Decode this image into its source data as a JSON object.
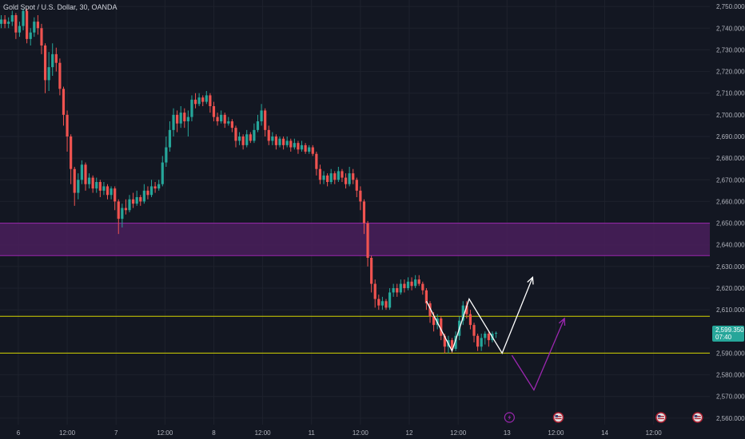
{
  "chart_data": {
    "type": "candlestick",
    "title": "Gold Spot / U.S. Dollar, 30, OANDA",
    "y_ticks": [
      "2,750.000",
      "2,740.000",
      "2,730.000",
      "2,720.000",
      "2,710.000",
      "2,700.000",
      "2,690.000",
      "2,680.000",
      "2,670.000",
      "2,660.000",
      "2,650.000",
      "2,640.000",
      "2,630.000",
      "2,620.000",
      "2,610.000",
      "2,590.000",
      "2,580.000",
      "2,570.000",
      "2,560.000"
    ],
    "y_tick_values": [
      2750,
      2740,
      2730,
      2720,
      2710,
      2700,
      2690,
      2680,
      2670,
      2660,
      2650,
      2640,
      2630,
      2620,
      2610,
      2590,
      2580,
      2570,
      2560
    ],
    "ylim": [
      2557,
      2753
    ],
    "x_ticks": [
      "6",
      "12:00",
      "7",
      "12:00",
      "8",
      "12:00",
      "11",
      "12:00",
      "12",
      "12:00",
      "13",
      "12:00",
      "14",
      "12:00"
    ],
    "x_tick_values": [
      1,
      3,
      5,
      7,
      9,
      11,
      13,
      15,
      17,
      19,
      21,
      23,
      25,
      27
    ],
    "xlim": [
      0.25,
      29.3
    ],
    "price_label": {
      "price": "2,599.350",
      "countdown": "07:40",
      "value": 2599.35
    },
    "zone": {
      "top": 2650,
      "bottom": 2635
    },
    "horizontal_lines": [
      2607,
      2590
    ],
    "candles": [
      {
        "x": 0.3,
        "o": 2742,
        "c": 2744,
        "h": 2746,
        "l": 2740
      },
      {
        "x": 0.45,
        "o": 2744,
        "c": 2742,
        "h": 2746,
        "l": 2740
      },
      {
        "x": 0.6,
        "o": 2742,
        "c": 2743,
        "h": 2745,
        "l": 2740
      },
      {
        "x": 0.75,
        "o": 2743,
        "c": 2746,
        "h": 2748,
        "l": 2741
      },
      {
        "x": 0.9,
        "o": 2746,
        "c": 2738,
        "h": 2747,
        "l": 2735
      },
      {
        "x": 1.05,
        "o": 2738,
        "c": 2741,
        "h": 2743,
        "l": 2736
      },
      {
        "x": 1.2,
        "o": 2741,
        "c": 2748,
        "h": 2749,
        "l": 2739
      },
      {
        "x": 1.35,
        "o": 2748,
        "c": 2735,
        "h": 2749,
        "l": 2733
      },
      {
        "x": 1.5,
        "o": 2735,
        "c": 2738,
        "h": 2740,
        "l": 2732
      },
      {
        "x": 1.65,
        "o": 2738,
        "c": 2743,
        "h": 2745,
        "l": 2736
      },
      {
        "x": 1.8,
        "o": 2743,
        "c": 2740,
        "h": 2746,
        "l": 2737
      },
      {
        "x": 1.95,
        "o": 2740,
        "c": 2732,
        "h": 2742,
        "l": 2728
      },
      {
        "x": 2.1,
        "o": 2732,
        "c": 2716,
        "h": 2733,
        "l": 2710
      },
      {
        "x": 2.25,
        "o": 2716,
        "c": 2722,
        "h": 2729,
        "l": 2711
      },
      {
        "x": 2.4,
        "o": 2722,
        "c": 2728,
        "h": 2733,
        "l": 2718
      },
      {
        "x": 2.55,
        "o": 2728,
        "c": 2724,
        "h": 2731,
        "l": 2720
      },
      {
        "x": 2.7,
        "o": 2724,
        "c": 2712,
        "h": 2726,
        "l": 2709
      },
      {
        "x": 2.85,
        "o": 2712,
        "c": 2700,
        "h": 2713,
        "l": 2695
      },
      {
        "x": 3.0,
        "o": 2700,
        "c": 2690,
        "h": 2702,
        "l": 2683
      },
      {
        "x": 3.15,
        "o": 2690,
        "c": 2675,
        "h": 2691,
        "l": 2668
      },
      {
        "x": 3.3,
        "o": 2675,
        "c": 2664,
        "h": 2676,
        "l": 2658
      },
      {
        "x": 3.45,
        "o": 2664,
        "c": 2670,
        "h": 2673,
        "l": 2661
      },
      {
        "x": 3.6,
        "o": 2670,
        "c": 2677,
        "h": 2679,
        "l": 2668
      },
      {
        "x": 3.75,
        "o": 2677,
        "c": 2668,
        "h": 2678,
        "l": 2665
      },
      {
        "x": 3.9,
        "o": 2668,
        "c": 2671,
        "h": 2673,
        "l": 2666
      },
      {
        "x": 4.05,
        "o": 2671,
        "c": 2666,
        "h": 2672,
        "l": 2664
      },
      {
        "x": 4.2,
        "o": 2666,
        "c": 2669,
        "h": 2671,
        "l": 2664
      },
      {
        "x": 4.35,
        "o": 2669,
        "c": 2665,
        "h": 2670,
        "l": 2662
      },
      {
        "x": 4.5,
        "o": 2665,
        "c": 2667,
        "h": 2669,
        "l": 2663
      },
      {
        "x": 4.65,
        "o": 2667,
        "c": 2663,
        "h": 2668,
        "l": 2661
      },
      {
        "x": 4.8,
        "o": 2663,
        "c": 2666,
        "h": 2667,
        "l": 2661
      },
      {
        "x": 4.95,
        "o": 2666,
        "c": 2660,
        "h": 2667,
        "l": 2656
      },
      {
        "x": 5.1,
        "o": 2660,
        "c": 2652,
        "h": 2661,
        "l": 2645
      },
      {
        "x": 5.25,
        "o": 2652,
        "c": 2657,
        "h": 2659,
        "l": 2648
      },
      {
        "x": 5.4,
        "o": 2657,
        "c": 2656,
        "h": 2661,
        "l": 2654
      },
      {
        "x": 5.55,
        "o": 2656,
        "c": 2661,
        "h": 2663,
        "l": 2655
      },
      {
        "x": 5.7,
        "o": 2661,
        "c": 2659,
        "h": 2664,
        "l": 2657
      },
      {
        "x": 5.85,
        "o": 2659,
        "c": 2662,
        "h": 2665,
        "l": 2658
      },
      {
        "x": 6.0,
        "o": 2662,
        "c": 2660,
        "h": 2663,
        "l": 2658
      },
      {
        "x": 6.15,
        "o": 2660,
        "c": 2665,
        "h": 2668,
        "l": 2659
      },
      {
        "x": 6.3,
        "o": 2665,
        "c": 2663,
        "h": 2667,
        "l": 2661
      },
      {
        "x": 6.45,
        "o": 2663,
        "c": 2667,
        "h": 2670,
        "l": 2662
      },
      {
        "x": 6.6,
        "o": 2667,
        "c": 2666,
        "h": 2669,
        "l": 2664
      },
      {
        "x": 6.75,
        "o": 2666,
        "c": 2668,
        "h": 2670,
        "l": 2665
      },
      {
        "x": 6.9,
        "o": 2668,
        "c": 2678,
        "h": 2681,
        "l": 2667
      },
      {
        "x": 7.05,
        "o": 2678,
        "c": 2685,
        "h": 2690,
        "l": 2676
      },
      {
        "x": 7.2,
        "o": 2685,
        "c": 2693,
        "h": 2697,
        "l": 2683
      },
      {
        "x": 7.35,
        "o": 2693,
        "c": 2700,
        "h": 2703,
        "l": 2690
      },
      {
        "x": 7.5,
        "o": 2700,
        "c": 2696,
        "h": 2702,
        "l": 2692
      },
      {
        "x": 7.65,
        "o": 2696,
        "c": 2701,
        "h": 2704,
        "l": 2694
      },
      {
        "x": 7.8,
        "o": 2701,
        "c": 2697,
        "h": 2703,
        "l": 2694
      },
      {
        "x": 7.95,
        "o": 2697,
        "c": 2699,
        "h": 2702,
        "l": 2690
      },
      {
        "x": 8.1,
        "o": 2699,
        "c": 2707,
        "h": 2709,
        "l": 2697
      },
      {
        "x": 8.25,
        "o": 2707,
        "c": 2705,
        "h": 2710,
        "l": 2703
      },
      {
        "x": 8.4,
        "o": 2705,
        "c": 2708,
        "h": 2710,
        "l": 2704
      },
      {
        "x": 8.55,
        "o": 2708,
        "c": 2706,
        "h": 2709,
        "l": 2704
      },
      {
        "x": 8.7,
        "o": 2706,
        "c": 2709,
        "h": 2711,
        "l": 2705
      },
      {
        "x": 8.85,
        "o": 2709,
        "c": 2704,
        "h": 2710,
        "l": 2701
      },
      {
        "x": 9.0,
        "o": 2704,
        "c": 2699,
        "h": 2706,
        "l": 2697
      },
      {
        "x": 9.15,
        "o": 2699,
        "c": 2697,
        "h": 2701,
        "l": 2695
      },
      {
        "x": 9.3,
        "o": 2697,
        "c": 2700,
        "h": 2702,
        "l": 2696
      },
      {
        "x": 9.45,
        "o": 2700,
        "c": 2696,
        "h": 2701,
        "l": 2694
      },
      {
        "x": 9.6,
        "o": 2696,
        "c": 2697,
        "h": 2699,
        "l": 2695
      },
      {
        "x": 9.75,
        "o": 2697,
        "c": 2694,
        "h": 2698,
        "l": 2692
      },
      {
        "x": 9.9,
        "o": 2694,
        "c": 2688,
        "h": 2695,
        "l": 2685
      },
      {
        "x": 10.05,
        "o": 2688,
        "c": 2690,
        "h": 2692,
        "l": 2686
      },
      {
        "x": 10.2,
        "o": 2690,
        "c": 2686,
        "h": 2691,
        "l": 2684
      },
      {
        "x": 10.35,
        "o": 2686,
        "c": 2691,
        "h": 2693,
        "l": 2685
      },
      {
        "x": 10.5,
        "o": 2691,
        "c": 2688,
        "h": 2692,
        "l": 2687
      },
      {
        "x": 10.65,
        "o": 2688,
        "c": 2693,
        "h": 2696,
        "l": 2687
      },
      {
        "x": 10.8,
        "o": 2693,
        "c": 2697,
        "h": 2700,
        "l": 2692
      },
      {
        "x": 10.95,
        "o": 2697,
        "c": 2702,
        "h": 2705,
        "l": 2695
      },
      {
        "x": 11.1,
        "o": 2702,
        "c": 2693,
        "h": 2703,
        "l": 2690
      },
      {
        "x": 11.25,
        "o": 2693,
        "c": 2688,
        "h": 2695,
        "l": 2686
      },
      {
        "x": 11.4,
        "o": 2688,
        "c": 2690,
        "h": 2692,
        "l": 2686
      },
      {
        "x": 11.55,
        "o": 2690,
        "c": 2686,
        "h": 2691,
        "l": 2684
      },
      {
        "x": 11.7,
        "o": 2686,
        "c": 2689,
        "h": 2690,
        "l": 2685
      },
      {
        "x": 11.85,
        "o": 2689,
        "c": 2686,
        "h": 2690,
        "l": 2684
      },
      {
        "x": 12.0,
        "o": 2686,
        "c": 2688,
        "h": 2690,
        "l": 2685
      },
      {
        "x": 12.15,
        "o": 2688,
        "c": 2685,
        "h": 2689,
        "l": 2683
      },
      {
        "x": 12.3,
        "o": 2685,
        "c": 2687,
        "h": 2689,
        "l": 2684
      },
      {
        "x": 12.45,
        "o": 2687,
        "c": 2684,
        "h": 2688,
        "l": 2682
      },
      {
        "x": 12.6,
        "o": 2684,
        "c": 2686,
        "h": 2688,
        "l": 2683
      },
      {
        "x": 12.75,
        "o": 2686,
        "c": 2683,
        "h": 2687,
        "l": 2682
      },
      {
        "x": 12.9,
        "o": 2683,
        "c": 2685,
        "h": 2686,
        "l": 2682
      },
      {
        "x": 13.05,
        "o": 2685,
        "c": 2682,
        "h": 2686,
        "l": 2681
      },
      {
        "x": 13.2,
        "o": 2682,
        "c": 2675,
        "h": 2683,
        "l": 2672
      },
      {
        "x": 13.35,
        "o": 2675,
        "c": 2670,
        "h": 2677,
        "l": 2668
      },
      {
        "x": 13.5,
        "o": 2670,
        "c": 2672,
        "h": 2674,
        "l": 2668
      },
      {
        "x": 13.65,
        "o": 2672,
        "c": 2669,
        "h": 2673,
        "l": 2667
      },
      {
        "x": 13.8,
        "o": 2669,
        "c": 2673,
        "h": 2675,
        "l": 2668
      },
      {
        "x": 13.95,
        "o": 2673,
        "c": 2670,
        "h": 2674,
        "l": 2668
      },
      {
        "x": 14.1,
        "o": 2670,
        "c": 2674,
        "h": 2676,
        "l": 2669
      },
      {
        "x": 14.25,
        "o": 2674,
        "c": 2671,
        "h": 2675,
        "l": 2669
      },
      {
        "x": 14.4,
        "o": 2671,
        "c": 2668,
        "h": 2673,
        "l": 2666
      },
      {
        "x": 14.55,
        "o": 2668,
        "c": 2673,
        "h": 2676,
        "l": 2667
      },
      {
        "x": 14.7,
        "o": 2673,
        "c": 2670,
        "h": 2675,
        "l": 2668
      },
      {
        "x": 14.85,
        "o": 2670,
        "c": 2665,
        "h": 2671,
        "l": 2662
      },
      {
        "x": 15.0,
        "o": 2665,
        "c": 2660,
        "h": 2667,
        "l": 2656
      },
      {
        "x": 15.15,
        "o": 2660,
        "c": 2650,
        "h": 2661,
        "l": 2645
      },
      {
        "x": 15.3,
        "o": 2650,
        "c": 2634,
        "h": 2651,
        "l": 2630
      },
      {
        "x": 15.45,
        "o": 2634,
        "c": 2622,
        "h": 2635,
        "l": 2618
      },
      {
        "x": 15.6,
        "o": 2622,
        "c": 2615,
        "h": 2624,
        "l": 2611
      },
      {
        "x": 15.75,
        "o": 2615,
        "c": 2612,
        "h": 2617,
        "l": 2610
      },
      {
        "x": 15.9,
        "o": 2612,
        "c": 2614,
        "h": 2616,
        "l": 2610
      },
      {
        "x": 16.05,
        "o": 2614,
        "c": 2611,
        "h": 2615,
        "l": 2610
      },
      {
        "x": 16.2,
        "o": 2611,
        "c": 2618,
        "h": 2620,
        "l": 2610
      },
      {
        "x": 16.35,
        "o": 2618,
        "c": 2620,
        "h": 2622,
        "l": 2616
      },
      {
        "x": 16.5,
        "o": 2620,
        "c": 2618,
        "h": 2622,
        "l": 2616
      },
      {
        "x": 16.65,
        "o": 2618,
        "c": 2622,
        "h": 2624,
        "l": 2617
      },
      {
        "x": 16.8,
        "o": 2622,
        "c": 2620,
        "h": 2624,
        "l": 2618
      },
      {
        "x": 16.95,
        "o": 2620,
        "c": 2623,
        "h": 2625,
        "l": 2619
      },
      {
        "x": 17.1,
        "o": 2623,
        "c": 2621,
        "h": 2625,
        "l": 2619
      },
      {
        "x": 17.25,
        "o": 2621,
        "c": 2624,
        "h": 2626,
        "l": 2620
      },
      {
        "x": 17.4,
        "o": 2624,
        "c": 2622,
        "h": 2626,
        "l": 2621
      },
      {
        "x": 17.55,
        "o": 2622,
        "c": 2619,
        "h": 2623,
        "l": 2617
      },
      {
        "x": 17.7,
        "o": 2619,
        "c": 2613,
        "h": 2620,
        "l": 2610
      },
      {
        "x": 17.85,
        "o": 2613,
        "c": 2607,
        "h": 2614,
        "l": 2604
      },
      {
        "x": 18.0,
        "o": 2607,
        "c": 2603,
        "h": 2609,
        "l": 2600
      },
      {
        "x": 18.15,
        "o": 2603,
        "c": 2606,
        "h": 2608,
        "l": 2601
      },
      {
        "x": 18.3,
        "o": 2606,
        "c": 2598,
        "h": 2607,
        "l": 2596
      },
      {
        "x": 18.45,
        "o": 2598,
        "c": 2593,
        "h": 2599,
        "l": 2590
      },
      {
        "x": 18.6,
        "o": 2593,
        "c": 2596,
        "h": 2598,
        "l": 2590
      },
      {
        "x": 18.75,
        "o": 2596,
        "c": 2592,
        "h": 2597,
        "l": 2590
      },
      {
        "x": 18.9,
        "o": 2592,
        "c": 2598,
        "h": 2600,
        "l": 2591
      },
      {
        "x": 19.05,
        "o": 2598,
        "c": 2605,
        "h": 2607,
        "l": 2596
      },
      {
        "x": 19.2,
        "o": 2605,
        "c": 2612,
        "h": 2614,
        "l": 2603
      },
      {
        "x": 19.35,
        "o": 2612,
        "c": 2608,
        "h": 2614,
        "l": 2606
      },
      {
        "x": 19.5,
        "o": 2608,
        "c": 2603,
        "h": 2610,
        "l": 2601
      },
      {
        "x": 19.65,
        "o": 2603,
        "c": 2598,
        "h": 2604,
        "l": 2595
      },
      {
        "x": 19.8,
        "o": 2598,
        "c": 2593,
        "h": 2599,
        "l": 2591
      },
      {
        "x": 19.95,
        "o": 2593,
        "c": 2597,
        "h": 2599,
        "l": 2591
      },
      {
        "x": 20.1,
        "o": 2597,
        "c": 2599,
        "h": 2600,
        "l": 2594
      },
      {
        "x": 20.25,
        "o": 2599,
        "c": 2596,
        "h": 2600,
        "l": 2593
      },
      {
        "x": 20.4,
        "o": 2596,
        "c": 2599,
        "h": 2600,
        "l": 2595
      },
      {
        "x": 20.55,
        "o": 2599,
        "c": 2599.35,
        "h": 2600,
        "l": 2597
      }
    ],
    "drawings": [
      {
        "name": "white-zigzag",
        "color": "#ffffff",
        "points": [
          [
            17.7,
            2614
          ],
          [
            18.75,
            2591
          ],
          [
            19.45,
            2615
          ],
          [
            20.8,
            2590
          ],
          [
            22.05,
            2625
          ]
        ]
      },
      {
        "name": "purple-projection",
        "color": "#9c27b0",
        "points": [
          [
            21.2,
            2589
          ],
          [
            22.1,
            2573
          ],
          [
            23.35,
            2606
          ]
        ]
      }
    ],
    "event_icons": [
      {
        "name": "lightning-icon",
        "x": 21.1
      },
      {
        "name": "us-flag-icon",
        "x": 23.1
      },
      {
        "name": "us-flag-icon",
        "x": 27.3
      },
      {
        "name": "us-flag-icon",
        "x": 28.8
      }
    ],
    "colors": {
      "background": "#131722",
      "grid": "#1e222d",
      "up": "#26a69a",
      "down": "#ef5350",
      "zone_fill": "#4a1f5c",
      "zone_border": "#9c27b0",
      "hline": "#d4d400",
      "text": "#b2b5be",
      "price_tag": "#26a69a"
    },
    "grid": true
  }
}
